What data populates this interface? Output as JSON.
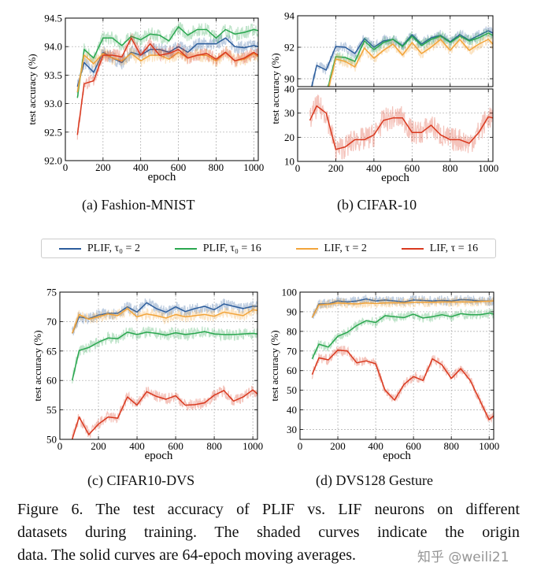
{
  "legend": [
    {
      "label": "PLIF, τ₀ = 2",
      "color": "#2c5d9c"
    },
    {
      "label": "PLIF, τ₀ = 16",
      "color": "#2aa74f"
    },
    {
      "label": "LIF, τ = 2",
      "color": "#f2a43a"
    },
    {
      "label": "LIF, τ = 16",
      "color": "#d9391f"
    }
  ],
  "captions": [
    "(a)  Fashion-MNIST",
    "(b)  CIFAR-10",
    "(c)  CIFAR10-DVS",
    "(d)  DVS128 Gesture"
  ],
  "figure_caption": [
    "Figure 6. The test accuracy of PLIF vs. LIF neurons on different",
    "datasets during training.  The shaded curves indicate the origin",
    "data. The solid curves are 64-epoch moving averages."
  ],
  "watermark": "知乎 @weili21",
  "chart_data": [
    {
      "type": "line",
      "title": "",
      "xlabel": "epoch",
      "ylabel": "test accuracy (%)",
      "xlim": [
        0,
        1024
      ],
      "ylim": [
        92.0,
        94.5
      ],
      "grid": true,
      "xticks": [
        "0",
        "200",
        "400",
        "600",
        "800",
        "1000"
      ],
      "yticks": [
        "92.0",
        "92.5",
        "93.0",
        "93.5",
        "94.0",
        "94.5"
      ],
      "x": [
        64,
        100,
        150,
        200,
        250,
        300,
        350,
        400,
        450,
        500,
        550,
        600,
        650,
        700,
        750,
        800,
        850,
        900,
        950,
        1000,
        1024
      ],
      "series": [
        {
          "name": "PLIF, τ₀ = 2",
          "color": "#2c5d9c",
          "values": [
            93.3,
            93.72,
            93.55,
            93.9,
            93.8,
            93.72,
            93.9,
            93.85,
            93.95,
            93.95,
            93.9,
            94.0,
            93.9,
            94.05,
            94.05,
            94.05,
            94.15,
            94.0,
            93.98,
            94.02,
            94.0
          ]
        },
        {
          "name": "PLIF, τ₀ = 16",
          "color": "#2aa74f",
          "values": [
            93.1,
            93.95,
            93.8,
            94.15,
            94.15,
            94.02,
            94.18,
            94.12,
            94.22,
            94.2,
            94.1,
            94.35,
            94.2,
            94.3,
            94.3,
            94.15,
            94.3,
            94.22,
            94.25,
            94.3,
            94.28
          ]
        },
        {
          "name": "LIF, τ = 2",
          "color": "#f2a43a",
          "values": [
            93.2,
            93.85,
            93.7,
            93.88,
            93.8,
            93.75,
            93.88,
            93.75,
            93.85,
            93.85,
            93.78,
            93.9,
            93.8,
            93.85,
            93.85,
            93.75,
            93.9,
            93.75,
            93.78,
            93.88,
            93.82
          ]
        },
        {
          "name": "LIF, τ = 16",
          "color": "#d9391f",
          "values": [
            92.45,
            93.35,
            93.4,
            93.85,
            93.85,
            93.82,
            94.15,
            93.85,
            94.05,
            93.85,
            93.88,
            93.95,
            93.8,
            93.85,
            93.88,
            93.78,
            93.9,
            93.75,
            93.8,
            93.9,
            93.85
          ]
        }
      ]
    },
    {
      "type": "line",
      "title": "",
      "xlabel": "epoch",
      "ylabel": "test accuracy (%)",
      "xlim": [
        0,
        1024
      ],
      "grid": true,
      "xticks": [
        "0",
        "200",
        "400",
        "600",
        "800",
        "1000"
      ],
      "x": [
        64,
        100,
        150,
        200,
        250,
        300,
        350,
        400,
        450,
        500,
        550,
        600,
        650,
        700,
        750,
        800,
        850,
        900,
        950,
        1000,
        1024
      ],
      "panels": [
        {
          "ylim": [
            89.5,
            94
          ],
          "yticks": [
            "90",
            "92",
            "94"
          ],
          "series": [
            {
              "name": "PLIF, τ₀ = 2",
              "color": "#2c5d9c",
              "values": [
                89.0,
                90.85,
                90.55,
                92.05,
                92.0,
                91.6,
                92.55,
                92.0,
                92.4,
                92.5,
                92.1,
                92.8,
                92.2,
                92.6,
                92.75,
                92.35,
                92.8,
                92.45,
                92.75,
                93.05,
                92.9
              ]
            },
            {
              "name": "PLIF, τ₀ = 16",
              "color": "#2aa74f",
              "values": [
                null,
                null,
                89.0,
                91.4,
                91.35,
                91.1,
                92.4,
                91.85,
                92.3,
                92.5,
                92.05,
                92.7,
                92.1,
                92.5,
                92.7,
                92.3,
                92.7,
                92.4,
                92.6,
                92.9,
                92.75
              ]
            },
            {
              "name": "LIF, τ = 2",
              "color": "#f2a43a",
              "values": [
                null,
                null,
                88.8,
                91.25,
                91.1,
                90.75,
                91.95,
                91.3,
                91.8,
                92.2,
                91.5,
                92.3,
                91.6,
                92.0,
                92.5,
                91.8,
                92.5,
                91.8,
                92.2,
                92.5,
                92.2
              ]
            }
          ]
        },
        {
          "ylim": [
            10,
            40
          ],
          "yticks": [
            "10",
            "20",
            "30",
            "40"
          ],
          "series": [
            {
              "name": "LIF, τ = 16",
              "color": "#d9391f",
              "values": [
                27,
                33,
                30,
                15,
                16,
                19,
                19,
                21,
                27,
                28,
                28,
                22,
                22,
                25,
                21,
                19,
                19,
                17.5,
                22,
                28.5,
                28
              ]
            }
          ]
        }
      ]
    },
    {
      "type": "line",
      "title": "",
      "xlabel": "epoch",
      "ylabel": "test accuracy (%)",
      "xlim": [
        0,
        1024
      ],
      "ylim": [
        50,
        75
      ],
      "grid": true,
      "xticks": [
        "0",
        "200",
        "400",
        "600",
        "800",
        "1000"
      ],
      "yticks": [
        "50",
        "55",
        "60",
        "65",
        "70",
        "75"
      ],
      "x": [
        64,
        100,
        150,
        200,
        250,
        300,
        350,
        400,
        450,
        500,
        550,
        600,
        650,
        700,
        750,
        800,
        850,
        900,
        950,
        1000,
        1024
      ],
      "series": [
        {
          "name": "PLIF, τ₀ = 2",
          "color": "#2c5d9c",
          "values": [
            68,
            70.8,
            70.5,
            71.1,
            71.4,
            71.4,
            72.5,
            71.6,
            73.2,
            72.2,
            71.6,
            72.5,
            71.7,
            72.2,
            72.6,
            72.0,
            73.0,
            72.6,
            72.2,
            72.6,
            72.6
          ]
        },
        {
          "name": "PLIF, τ₀ = 16",
          "color": "#2aa74f",
          "values": [
            60,
            65.1,
            65.6,
            66.5,
            67.2,
            67.1,
            68.2,
            67.8,
            68.2,
            68.0,
            67.7,
            68.1,
            67.8,
            68.0,
            68.3,
            67.9,
            67.8,
            67.8,
            67.9,
            68.0,
            67.9
          ]
        },
        {
          "name": "LIF, τ = 2",
          "color": "#f2a43a",
          "values": [
            68,
            71.2,
            70.4,
            70.8,
            71.3,
            71.0,
            72.2,
            70.8,
            71.3,
            71.0,
            70.6,
            71.2,
            70.8,
            71.0,
            71.2,
            70.9,
            71.6,
            71.3,
            71.0,
            72.0,
            71.9
          ]
        },
        {
          "name": "LIF, τ = 16",
          "color": "#d9391f",
          "values": [
            50,
            53.8,
            50.8,
            52.6,
            53.8,
            53.6,
            57.2,
            55.8,
            58.1,
            57.3,
            56.8,
            57.4,
            55.8,
            55.9,
            56.2,
            57.5,
            58.3,
            56.5,
            57.2,
            58.4,
            57.7
          ]
        }
      ]
    },
    {
      "type": "line",
      "title": "",
      "xlabel": "epoch",
      "ylabel": "test accuracy (%)",
      "xlim": [
        0,
        1024
      ],
      "ylim": [
        25,
        100
      ],
      "grid": true,
      "xticks": [
        "0",
        "200",
        "400",
        "600",
        "800",
        "1000"
      ],
      "yticks": [
        "30",
        "40",
        "50",
        "60",
        "70",
        "80",
        "90",
        "100"
      ],
      "x": [
        64,
        100,
        150,
        200,
        250,
        300,
        350,
        400,
        450,
        500,
        550,
        600,
        650,
        700,
        750,
        800,
        850,
        900,
        950,
        1000,
        1024
      ],
      "series": [
        {
          "name": "PLIF, τ₀ = 2",
          "color": "#2c5d9c",
          "values": [
            87,
            94,
            94,
            95.5,
            95,
            95.5,
            96.5,
            95.5,
            96,
            95.5,
            95,
            96,
            95.8,
            95.5,
            95.8,
            95.5,
            96.2,
            96,
            95.5,
            95.5,
            95.5
          ]
        },
        {
          "name": "PLIF, τ₀ = 16",
          "color": "#2aa74f",
          "values": [
            66,
            73.5,
            72,
            77.5,
            79.5,
            83,
            85.5,
            84.5,
            88,
            87.5,
            87,
            88.8,
            86.8,
            87.5,
            88.5,
            87.5,
            89,
            88.5,
            88.5,
            89.3,
            88.8
          ]
        },
        {
          "name": "LIF, τ = 2",
          "color": "#f2a43a",
          "values": [
            87,
            93.5,
            93.8,
            94.5,
            94.2,
            94,
            94.5,
            94.2,
            94.5,
            94.6,
            94.5,
            94.8,
            94.8,
            94.8,
            95,
            95,
            95,
            95,
            95.2,
            95.4,
            95.5
          ]
        },
        {
          "name": "LIF, τ = 16",
          "color": "#d9391f",
          "values": [
            58,
            66.5,
            65.5,
            70.5,
            70,
            64,
            65,
            63.5,
            50,
            45,
            53,
            57,
            55,
            66,
            63,
            56,
            61,
            55,
            45,
            35,
            37
          ]
        }
      ]
    }
  ]
}
